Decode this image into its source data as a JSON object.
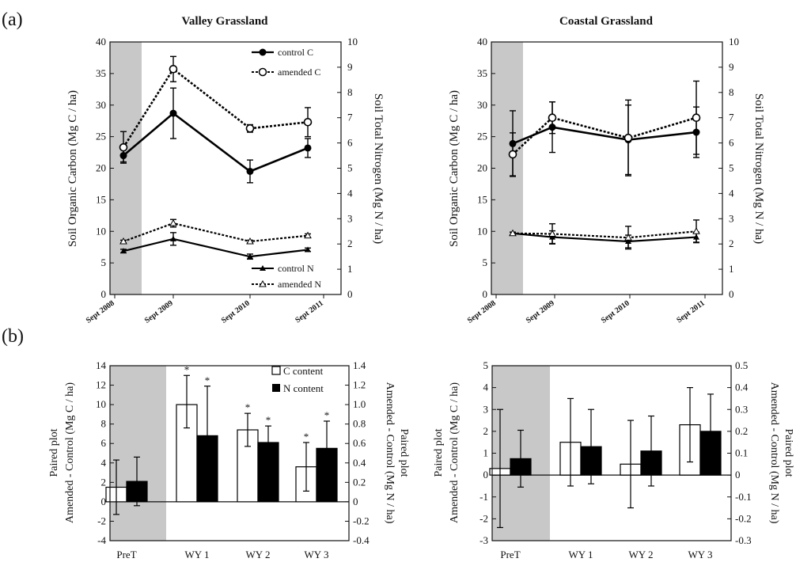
{
  "panels": {
    "a": "(a)",
    "b": "(b)"
  },
  "chart_data": [
    {
      "type": "line",
      "id": "a-valley",
      "title": "Valley Grassland",
      "ylabel": "Soil Organic Carbon (Mg C / ha)",
      "y2label": "Soil Total Nitrogen (Mg N / ha)",
      "ylim": [
        0,
        40
      ],
      "y2lim": [
        0,
        10
      ],
      "yticks": [
        "0",
        "5",
        "10",
        "15",
        "20",
        "25",
        "30",
        "35",
        "40"
      ],
      "y2ticks": [
        "0",
        "1",
        "2",
        "3",
        "4",
        "5",
        "6",
        "7",
        "8",
        "9",
        "10"
      ],
      "x_tick_labels": [
        "Sept 2008",
        "Sept 2009",
        "Sept 2010",
        "Sept 2011"
      ],
      "x": [
        "Mar 2009",
        "Sept 2009",
        "June 2010",
        "Apr 2011"
      ],
      "pretreatment_shade": [
        "Sept 2008",
        "Jan 2009"
      ],
      "legend_c": [
        "control C",
        "amended C"
      ],
      "legend_n": [
        "control N",
        "amended N"
      ],
      "series": [
        {
          "name": "control C",
          "axis": "left",
          "marker": "filled-circle",
          "values": [
            22.0,
            28.7,
            19.5,
            23.2
          ],
          "err": [
            1.0,
            4.0,
            1.8,
            1.5
          ]
        },
        {
          "name": "amended C",
          "axis": "left",
          "marker": "open-circle",
          "dashed": true,
          "values": [
            23.3,
            35.7,
            26.3,
            27.3
          ],
          "err": [
            2.5,
            2.0,
            0.6,
            2.3
          ]
        },
        {
          "name": "control N",
          "axis": "right",
          "marker": "filled-triangle",
          "values": [
            1.72,
            2.2,
            1.5,
            1.77
          ],
          "err": [
            0.07,
            0.25,
            0.1,
            0.07
          ]
        },
        {
          "name": "amended N",
          "axis": "right",
          "marker": "open-triangle",
          "dashed": true,
          "values": [
            2.1,
            2.82,
            2.1,
            2.33
          ],
          "err": [
            0.05,
            0.15,
            0.05,
            0.07
          ]
        }
      ]
    },
    {
      "type": "line",
      "id": "a-coastal",
      "title": "Coastal Grassland",
      "ylabel": "Soil Organic Carbon (Mg C / ha)",
      "y2label": "Soil Total Nitrogen (Mg N / ha)",
      "ylim": [
        0,
        40
      ],
      "y2lim": [
        0,
        10
      ],
      "yticks": [
        "0",
        "5",
        "10",
        "15",
        "20",
        "25",
        "30",
        "35",
        "40"
      ],
      "y2ticks": [
        "0",
        "1",
        "2",
        "3",
        "4",
        "5",
        "6",
        "7",
        "8",
        "9",
        "10"
      ],
      "x_tick_labels": [
        "Sept 2008",
        "Sept 2009",
        "Sept 2010",
        "Sept 2011"
      ],
      "x": [
        "Mar 2009",
        "Sept 2009",
        "June 2010",
        "Apr 2011"
      ],
      "pretreatment_shade": [
        "Sept 2008",
        "Jan 2009"
      ],
      "series": [
        {
          "name": "control C",
          "axis": "left",
          "marker": "filled-circle",
          "values": [
            23.9,
            26.5,
            24.5,
            25.7
          ],
          "err": [
            5.2,
            4.0,
            5.5,
            4.0
          ]
        },
        {
          "name": "amended C",
          "axis": "left",
          "marker": "open-circle",
          "dashed": true,
          "values": [
            22.2,
            28.0,
            24.8,
            28.0
          ],
          "err": [
            3.4,
            2.5,
            6.0,
            5.8
          ]
        },
        {
          "name": "control N",
          "axis": "right",
          "marker": "filled-triangle",
          "values": [
            2.42,
            2.27,
            2.1,
            2.27
          ],
          "err": [
            0.05,
            0.25,
            0.25,
            0.2
          ]
        },
        {
          "name": "amended N",
          "axis": "right",
          "marker": "open-triangle",
          "dashed": true,
          "values": [
            2.42,
            2.4,
            2.25,
            2.5
          ],
          "err": [
            0.05,
            0.4,
            0.45,
            0.45
          ]
        }
      ]
    },
    {
      "type": "bar",
      "id": "b-valley",
      "categories": [
        "PreT",
        "WY 1",
        "WY 2",
        "WY 3"
      ],
      "ylabel_1": "Paired plot",
      "ylabel_2": "Amended - Control (Mg C / ha)",
      "y2label_1": "Amended - Control (Mg N / ha)",
      "y2label_2": "Paired plot",
      "ylim": [
        -4,
        14
      ],
      "y2lim": [
        -0.4,
        1.4
      ],
      "yticks": [
        "-4",
        "-2",
        "0",
        "2",
        "4",
        "6",
        "8",
        "10",
        "12",
        "14"
      ],
      "y2ticks": [
        "-0.4",
        "-0.2",
        "0",
        "0.2",
        "0.4",
        "0.6",
        "0.8",
        "1.0",
        "1.2",
        "1.4"
      ],
      "shade_category": "PreT",
      "legend": [
        "C content",
        "N content"
      ],
      "series": [
        {
          "name": "C content",
          "axis": "left",
          "color": "#ffffff",
          "values": [
            1.5,
            10.0,
            7.4,
            3.6
          ],
          "err_up": [
            2.8,
            3.0,
            1.7,
            2.5
          ],
          "err_down": [
            2.8,
            2.4,
            1.7,
            2.5
          ],
          "stars": [
            false,
            true,
            true,
            true
          ]
        },
        {
          "name": "N content",
          "axis": "right",
          "color": "#000000",
          "values": [
            0.21,
            0.68,
            0.61,
            0.55
          ],
          "err_up": [
            0.25,
            0.51,
            0.17,
            0.28
          ],
          "err_down": [
            0.25,
            0.51,
            0.17,
            0.28
          ],
          "stars": [
            false,
            true,
            true,
            true
          ]
        }
      ],
      "star_symbol": "*"
    },
    {
      "type": "bar",
      "id": "b-coastal",
      "categories": [
        "PreT",
        "WY 1",
        "WY 2",
        "WY 3"
      ],
      "ylabel_1": "Paired plot",
      "ylabel_2": "Amended - Control (Mg C / ha)",
      "y2label_1": "Amended - Control (Mg N / ha)",
      "y2label_2": "Paired plot",
      "ylim": [
        -3,
        5
      ],
      "y2lim": [
        -0.3,
        0.5
      ],
      "yticks": [
        "-3",
        "-2",
        "-1",
        "0",
        "1",
        "2",
        "3",
        "4",
        "5"
      ],
      "y2ticks": [
        "-0.3",
        "-0.2",
        "-0.1",
        "0",
        "0.1",
        "0.2",
        "0.3",
        "0.4",
        "0.5"
      ],
      "shade_category": "PreT",
      "series": [
        {
          "name": "C content",
          "axis": "left",
          "color": "#ffffff",
          "values": [
            0.3,
            1.5,
            0.5,
            2.3
          ],
          "err_up": [
            2.7,
            2.0,
            2.0,
            1.7
          ],
          "err_down": [
            2.7,
            2.0,
            2.0,
            1.7
          ]
        },
        {
          "name": "N content",
          "axis": "right",
          "color": "#000000",
          "values": [
            0.075,
            0.13,
            0.11,
            0.2
          ],
          "err_up": [
            0.13,
            0.17,
            0.16,
            0.17
          ],
          "err_down": [
            0.13,
            0.17,
            0.16,
            0.17
          ]
        }
      ]
    }
  ]
}
